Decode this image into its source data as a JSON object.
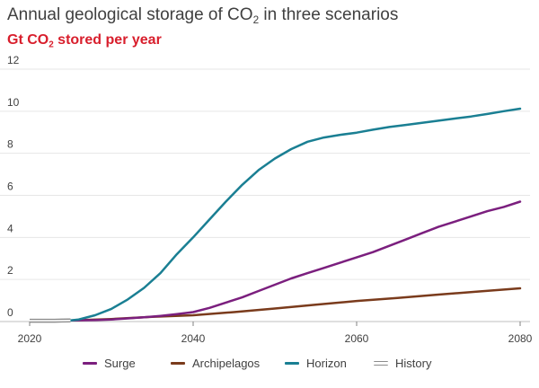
{
  "title": {
    "pre": "Annual geological storage of CO",
    "sub": "2",
    "post": " in three scenarios"
  },
  "subtitle": {
    "pre": "Gt CO",
    "sub": "2",
    "post": " stored per year"
  },
  "colors": {
    "title": "#404040",
    "subtitle": "#d81e2c",
    "surge": "#7b1f7e",
    "archipelagos": "#7a3b1c",
    "horizon": "#1a7f93",
    "history": "#8c8c8c",
    "grid": "#e6e6e6"
  },
  "chart_data": {
    "type": "line",
    "title": "Annual geological storage of CO2 in three scenarios",
    "ylabel": "Gt CO2 stored per year",
    "xlabel": "",
    "xlim": [
      2020,
      2080
    ],
    "ylim": [
      0,
      12
    ],
    "x_ticks": [
      2020,
      2040,
      2060,
      2080
    ],
    "y_ticks": [
      0,
      2,
      4,
      6,
      8,
      10,
      12
    ],
    "grid": "horizontal",
    "legend_position": "bottom",
    "series": [
      {
        "name": "Surge",
        "color": "#7b1f7e",
        "x": [
          2025,
          2028,
          2030,
          2032,
          2034,
          2036,
          2038,
          2040,
          2042,
          2044,
          2046,
          2048,
          2050,
          2052,
          2054,
          2056,
          2058,
          2060,
          2062,
          2064,
          2066,
          2068,
          2070,
          2072,
          2074,
          2076,
          2078,
          2080
        ],
        "values": [
          0.05,
          0.07,
          0.1,
          0.15,
          0.2,
          0.27,
          0.35,
          0.45,
          0.65,
          0.9,
          1.15,
          1.45,
          1.75,
          2.05,
          2.3,
          2.55,
          2.8,
          3.05,
          3.3,
          3.6,
          3.9,
          4.2,
          4.5,
          4.75,
          5.0,
          5.25,
          5.45,
          5.7
        ]
      },
      {
        "name": "Archipelagos",
        "color": "#7a3b1c",
        "x": [
          2025,
          2030,
          2035,
          2040,
          2045,
          2050,
          2055,
          2060,
          2065,
          2070,
          2075,
          2080
        ],
        "values": [
          0.05,
          0.12,
          0.22,
          0.3,
          0.45,
          0.62,
          0.8,
          0.98,
          1.12,
          1.28,
          1.43,
          1.58
        ]
      },
      {
        "name": "Horizon",
        "color": "#1a7f93",
        "x": [
          2025,
          2026,
          2028,
          2030,
          2032,
          2034,
          2036,
          2038,
          2040,
          2042,
          2044,
          2046,
          2048,
          2050,
          2052,
          2054,
          2056,
          2058,
          2060,
          2062,
          2064,
          2066,
          2068,
          2070,
          2072,
          2074,
          2076,
          2078,
          2080
        ],
        "values": [
          0.05,
          0.1,
          0.3,
          0.6,
          1.05,
          1.6,
          2.3,
          3.2,
          4.0,
          4.85,
          5.7,
          6.5,
          7.2,
          7.75,
          8.2,
          8.55,
          8.75,
          8.88,
          8.98,
          9.12,
          9.25,
          9.35,
          9.45,
          9.55,
          9.65,
          9.75,
          9.87,
          10.0,
          10.12
        ]
      },
      {
        "name": "History",
        "color": "#8c8c8c",
        "x": [
          2020,
          2021,
          2022,
          2023,
          2024,
          2025
        ],
        "values": [
          0.04,
          0.04,
          0.04,
          0.04,
          0.045,
          0.05
        ]
      }
    ]
  },
  "legend": [
    {
      "label": "Surge",
      "color": "#7b1f7e",
      "style": "solid"
    },
    {
      "label": "Archipelagos",
      "color": "#7a3b1c",
      "style": "solid"
    },
    {
      "label": "Horizon",
      "color": "#1a7f93",
      "style": "solid"
    },
    {
      "label": "History",
      "color": "#8c8c8c",
      "style": "double"
    }
  ]
}
